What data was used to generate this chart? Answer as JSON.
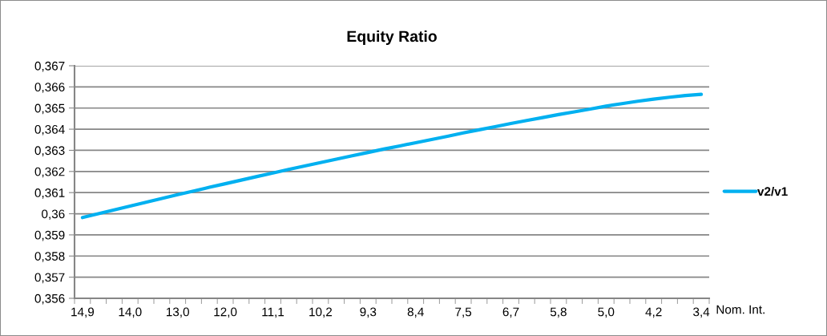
{
  "chart_data": {
    "type": "line",
    "title": "Equity Ratio",
    "xlabel": "Nom. Int.",
    "categories": [
      "14,9",
      null,
      null,
      "14,0",
      null,
      null,
      "13,0",
      null,
      null,
      "12,0",
      null,
      null,
      "11,1",
      null,
      null,
      "10,2",
      null,
      null,
      "9,3",
      null,
      null,
      "8,4",
      null,
      null,
      "7,5",
      null,
      null,
      "6,7",
      null,
      null,
      "5,8",
      null,
      null,
      "5,0",
      null,
      null,
      "4,2",
      null,
      null,
      "3,4"
    ],
    "series": [
      {
        "name": "v2/v1",
        "color": "#00b0f0",
        "values": [
          0.35982,
          0.36,
          0.36018,
          0.36036,
          0.36054,
          0.36072,
          0.3609,
          0.36107,
          0.36125,
          0.36142,
          0.36159,
          0.36176,
          0.36193,
          0.3621,
          0.36226,
          0.36242,
          0.36258,
          0.36274,
          0.3629,
          0.36306,
          0.36321,
          0.36336,
          0.36351,
          0.36366,
          0.36382,
          0.36397,
          0.36412,
          0.36427,
          0.36441,
          0.36455,
          0.36469,
          0.36482,
          0.36495,
          0.36509,
          0.36521,
          0.36532,
          0.36542,
          0.36551,
          0.36559,
          0.36565
        ]
      }
    ],
    "ylim": [
      0.356,
      0.367
    ],
    "yticks": [
      {
        "value": 0.356,
        "label": "0,356"
      },
      {
        "value": 0.357,
        "label": "0,357"
      },
      {
        "value": 0.358,
        "label": "0,358"
      },
      {
        "value": 0.359,
        "label": "0,359"
      },
      {
        "value": 0.36,
        "label": "0,36"
      },
      {
        "value": 0.361,
        "label": "0,361"
      },
      {
        "value": 0.362,
        "label": "0,362"
      },
      {
        "value": 0.363,
        "label": "0,363"
      },
      {
        "value": 0.364,
        "label": "0,364"
      },
      {
        "value": 0.365,
        "label": "0,365"
      },
      {
        "value": 0.366,
        "label": "0,366"
      },
      {
        "value": 0.367,
        "label": "0,367"
      }
    ],
    "grid": "y",
    "legend": "right",
    "line_style": "solid"
  }
}
